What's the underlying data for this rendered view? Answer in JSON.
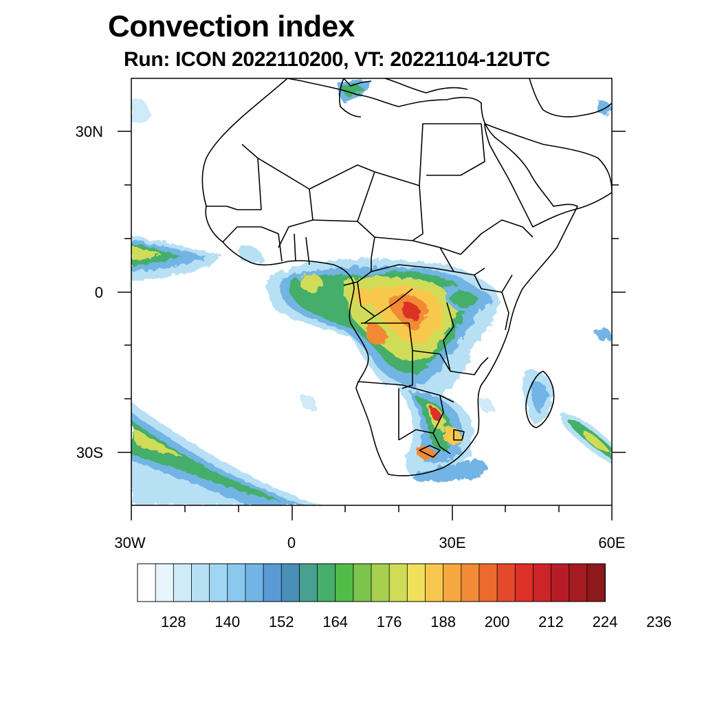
{
  "title": "Convection index",
  "subtitle": "Run: ICON 2022110200,  VT: 20221104-12UTC",
  "map": {
    "type": "filled-contour-map",
    "lon_range": [
      -30,
      60
    ],
    "lat_range": [
      -40,
      40
    ],
    "lat_labels": [
      "30N",
      "0",
      "30S"
    ],
    "lon_labels": [
      "30W",
      "0",
      "30E",
      "60E"
    ]
  },
  "colorbar": {
    "colors": [
      "#ffffff",
      "#e8f5fc",
      "#cfeaf8",
      "#b8e0f5",
      "#a0d6f3",
      "#8ac8ee",
      "#72b4e4",
      "#5a9ad4",
      "#4a8fb8",
      "#48a090",
      "#44ae6a",
      "#52bc48",
      "#7cc44e",
      "#a8d050",
      "#d0dc58",
      "#f0e05a",
      "#f8c84e",
      "#f6a840",
      "#f28a36",
      "#ec6a2e",
      "#e44a2a",
      "#dc3028",
      "#cc2428",
      "#b81c26",
      "#a41c22",
      "#8c1a1c"
    ],
    "labels": [
      "128",
      "140",
      "152",
      "164",
      "176",
      "188",
      "200",
      "212",
      "224",
      "236"
    ]
  }
}
